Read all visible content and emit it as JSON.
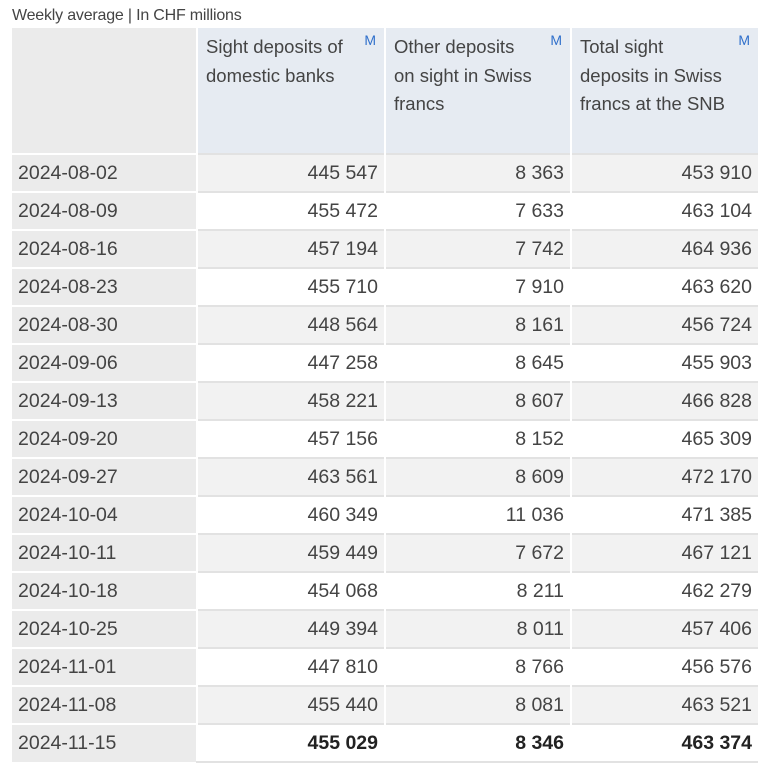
{
  "caption": "Weekly average | In CHF millions",
  "columns": [
    {
      "label": "Sight deposits of domestic banks",
      "marker": "M"
    },
    {
      "label": "Other deposits on sight in Swiss francs",
      "marker": "M"
    },
    {
      "label": "Total sight deposits in Swiss francs at the SNB",
      "marker": "M"
    }
  ],
  "marker_color": "#2f6fcb",
  "rows": [
    {
      "date": "2024-08-02",
      "values": [
        "445 547",
        "8 363",
        "453 910"
      ]
    },
    {
      "date": "2024-08-09",
      "values": [
        "455 472",
        "7 633",
        "463 104"
      ]
    },
    {
      "date": "2024-08-16",
      "values": [
        "457 194",
        "7 742",
        "464 936"
      ]
    },
    {
      "date": "2024-08-23",
      "values": [
        "455 710",
        "7 910",
        "463 620"
      ]
    },
    {
      "date": "2024-08-30",
      "values": [
        "448 564",
        "8 161",
        "456 724"
      ]
    },
    {
      "date": "2024-09-06",
      "values": [
        "447 258",
        "8 645",
        "455 903"
      ]
    },
    {
      "date": "2024-09-13",
      "values": [
        "458 221",
        "8 607",
        "466 828"
      ]
    },
    {
      "date": "2024-09-20",
      "values": [
        "457 156",
        "8 152",
        "465 309"
      ]
    },
    {
      "date": "2024-09-27",
      "values": [
        "463 561",
        "8 609",
        "472 170"
      ]
    },
    {
      "date": "2024-10-04",
      "values": [
        "460 349",
        "11 036",
        "471 385"
      ]
    },
    {
      "date": "2024-10-11",
      "values": [
        "459 449",
        "7 672",
        "467 121"
      ]
    },
    {
      "date": "2024-10-18",
      "values": [
        "454 068",
        "8 211",
        "462 279"
      ]
    },
    {
      "date": "2024-10-25",
      "values": [
        "449 394",
        "8 011",
        "457 406"
      ]
    },
    {
      "date": "2024-11-01",
      "values": [
        "447 810",
        "8 766",
        "456 576"
      ]
    },
    {
      "date": "2024-11-08",
      "values": [
        "455 440",
        "8 081",
        "463 521"
      ]
    },
    {
      "date": "2024-11-15",
      "values": [
        "455 029",
        "8 346",
        "463 374"
      ],
      "bold": true
    }
  ]
}
